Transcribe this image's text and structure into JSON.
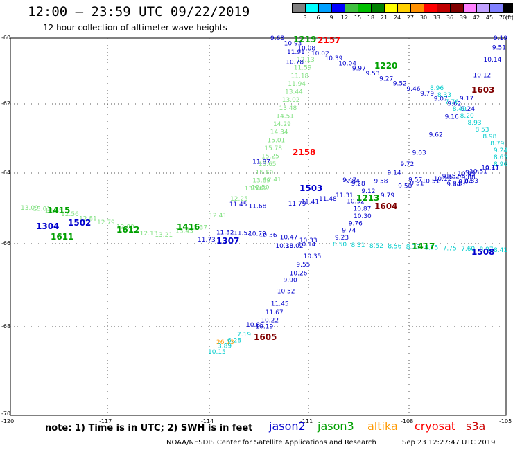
{
  "header": {
    "title": "12:00 – 23:59 UTC 09/22/2019",
    "subtitle": "12 hour collection of altimeter wave heights"
  },
  "color_scale": {
    "colors": [
      "#808080",
      "#00ffff",
      "#00a0ff",
      "#0000ff",
      "#40c040",
      "#00c000",
      "#008000",
      "#ffff00",
      "#ffd000",
      "#ff9000",
      "#ff0000",
      "#c00000",
      "#800000",
      "#ff80ff",
      "#c0a0ff",
      "#8080ff",
      "#000000"
    ],
    "labels": [
      "3",
      "6",
      "9",
      "12",
      "15",
      "18",
      "21",
      "24",
      "27",
      "30",
      "33",
      "36",
      "39",
      "42",
      "45",
      "70",
      "(ft)"
    ]
  },
  "map": {
    "lat_labels": [
      "-60",
      "-62",
      "-64",
      "-66",
      "-68",
      "-70"
    ],
    "lon_labels": [
      "-120",
      "-117",
      "-114",
      "-111",
      "-108",
      "-105"
    ]
  },
  "legend": {
    "note": "note:  1) Time is in UTC;  2) SWH is in feet",
    "satellites": [
      {
        "name": "jason2",
        "color": "#0000cc"
      },
      {
        "name": "jason3",
        "color": "#00a000"
      },
      {
        "name": "altika",
        "color": "#ff9900"
      },
      {
        "name": "cryosat",
        "color": "#ff0000"
      },
      {
        "name": "s3a",
        "color": "#cc0000"
      }
    ]
  },
  "footer": {
    "credit": "NOAA/NESDIS Center for Satellite Applications and Research",
    "timestamp": "Sep 23 12:27:47 UTC 2019"
  },
  "tracks": {
    "jason2_a": {
      "color": "#0000cc",
      "values": [
        "9.68",
        "10.93",
        "10.08",
        "10.02",
        "10.39",
        "10.04",
        "9.97",
        "9.53",
        "9.27",
        "9.52",
        "9.46",
        "9.79",
        "9.07",
        "9.62",
        "9.24"
      ]
    },
    "jason2_b": {
      "color": "#0000cc",
      "values": [
        "9.19",
        "9.51",
        "10.14",
        "10.12",
        "9.17",
        "9.16",
        "9.62",
        "9.03",
        "9.72",
        "9.14",
        "9.58",
        "9.12",
        "9.28",
        "9.47",
        "9.84",
        "9.57",
        "9.65",
        "9.13",
        "9.41"
      ]
    },
    "s3a_a": {
      "color": "#00cccc",
      "values": [
        "8.96",
        "8.33",
        "7.76",
        "8.40",
        "8.20",
        "8.93",
        "8.53",
        "8.98",
        "8.79",
        "9.24",
        "8.63",
        "8.96"
      ]
    },
    "jason3_a": {
      "color": "#80e080",
      "values": [
        "12.13",
        "11.59",
        "11.18",
        "11.94",
        "13.44",
        "13.02",
        "13.48",
        "14.51",
        "14.29",
        "14.34",
        "15.01",
        "15.78",
        "15.25",
        "15.65",
        "15.60",
        "13.89",
        "13.62"
      ]
    },
    "jason2_c": {
      "color": "#0000cc",
      "values": [
        "11.91",
        "10.78",
        "11.87",
        "11.45",
        "11.68",
        "11.79",
        "11.41",
        "11.48",
        "11.31",
        "10.92",
        "10.87",
        "10.30",
        "9.76",
        "9.74",
        "9.23",
        "9.79",
        "9.50",
        "9.31",
        "10.51",
        "10.12",
        "10.24",
        "10.45",
        "10.51",
        "10.17",
        "9.88",
        "9.84",
        "9.87",
        "9.64",
        "9.83"
      ]
    },
    "jason3_b": {
      "color": "#80e080",
      "values": [
        "13.09",
        "13.01",
        "13.45",
        "12.56",
        "12.81",
        "12.79",
        "12.00",
        "12.13",
        "13.21",
        "13.43",
        "13.37",
        "12.41",
        "12.25",
        "13.54",
        "12.50",
        "12.41"
      ]
    },
    "jason2_d": {
      "color": "#0000cc",
      "values": [
        "11.73",
        "11.32",
        "11.52",
        "10.79",
        "10.36",
        "10.47",
        "10.33",
        "10.14",
        "10.02",
        "10.38",
        "10.35",
        "9.55",
        "10.26",
        "9.90",
        "10.52",
        "11.45",
        "11.67",
        "10.22",
        "10.19",
        "10.89"
      ]
    },
    "s3a_b": {
      "color": "#00cccc",
      "values": [
        "8.50",
        "8.31",
        "8.52",
        "8.56",
        "8.78",
        "8.75",
        "7.75",
        "7.60",
        "8.97",
        "8.41"
      ]
    },
    "altika": {
      "color": "#ff9900",
      "values": [
        "26.13"
      ]
    },
    "s3a_c": {
      "color": "#00cccc",
      "values": [
        "7.19",
        "6.28",
        "3.89",
        "10.15"
      ]
    }
  },
  "time_labels": [
    {
      "text": "1219",
      "color": "#00a000"
    },
    {
      "text": "2157",
      "color": "#ff0000"
    },
    {
      "text": "1220",
      "color": "#00a000"
    },
    {
      "text": "1603",
      "color": "#800000"
    },
    {
      "text": "2158",
      "color": "#ff0000"
    },
    {
      "text": "1503",
      "color": "#0000cc"
    },
    {
      "text": "1604",
      "color": "#800000"
    },
    {
      "text": "1213",
      "color": "#00a000"
    },
    {
      "text": "1415",
      "color": "#00a000"
    },
    {
      "text": "1502",
      "color": "#0000cc"
    },
    {
      "text": "1304",
      "color": "#0000cc"
    },
    {
      "text": "1611",
      "color": "#00a000"
    },
    {
      "text": "1612",
      "color": "#00a000"
    },
    {
      "text": "1416",
      "color": "#00a000"
    },
    {
      "text": "1307",
      "color": "#0000cc"
    },
    {
      "text": "1417",
      "color": "#00a000"
    },
    {
      "text": "1508",
      "color": "#0000cc"
    },
    {
      "text": "1605",
      "color": "#800000"
    }
  ]
}
